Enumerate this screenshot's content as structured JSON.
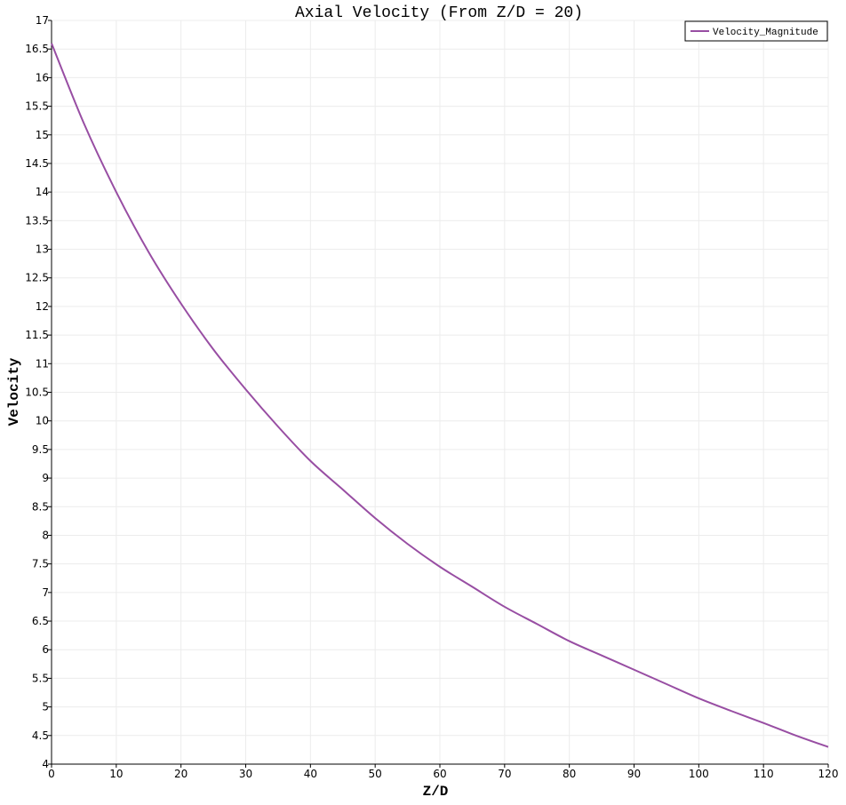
{
  "chart_data": {
    "type": "line",
    "title": "Axial Velocity (From Z/D = 20)",
    "xlabel": "Z/D",
    "ylabel": "Velocity",
    "xlim": [
      0,
      120
    ],
    "ylim": [
      4,
      17
    ],
    "x_ticks": [
      "0",
      "10",
      "20",
      "30",
      "40",
      "50",
      "60",
      "70",
      "80",
      "90",
      "100",
      "110",
      "120"
    ],
    "y_ticks": [
      "4",
      "4.5",
      "5",
      "5.5",
      "6",
      "6.5",
      "7",
      "7.5",
      "8",
      "8.5",
      "9",
      "9.5",
      "10",
      "10.5",
      "11",
      "11.5",
      "12",
      "12.5",
      "13",
      "13.5",
      "14",
      "14.5",
      "15",
      "15.5",
      "16",
      "16.5",
      "17"
    ],
    "grid": true,
    "legend_position": "top-right",
    "series": [
      {
        "name": "Velocity_Magnitude",
        "color": "#984ea3",
        "x": [
          0,
          5,
          10,
          15,
          20,
          25,
          30,
          35,
          40,
          45,
          50,
          55,
          60,
          65,
          70,
          75,
          80,
          85,
          90,
          95,
          100,
          105,
          110,
          115,
          120
        ],
        "y": [
          16.6,
          15.2,
          14.0,
          12.95,
          12.05,
          11.25,
          10.55,
          9.9,
          9.3,
          8.8,
          8.3,
          7.85,
          7.45,
          7.1,
          6.75,
          6.45,
          6.15,
          5.9,
          5.65,
          5.4,
          5.15,
          4.93,
          4.72,
          4.5,
          4.3
        ]
      }
    ]
  }
}
